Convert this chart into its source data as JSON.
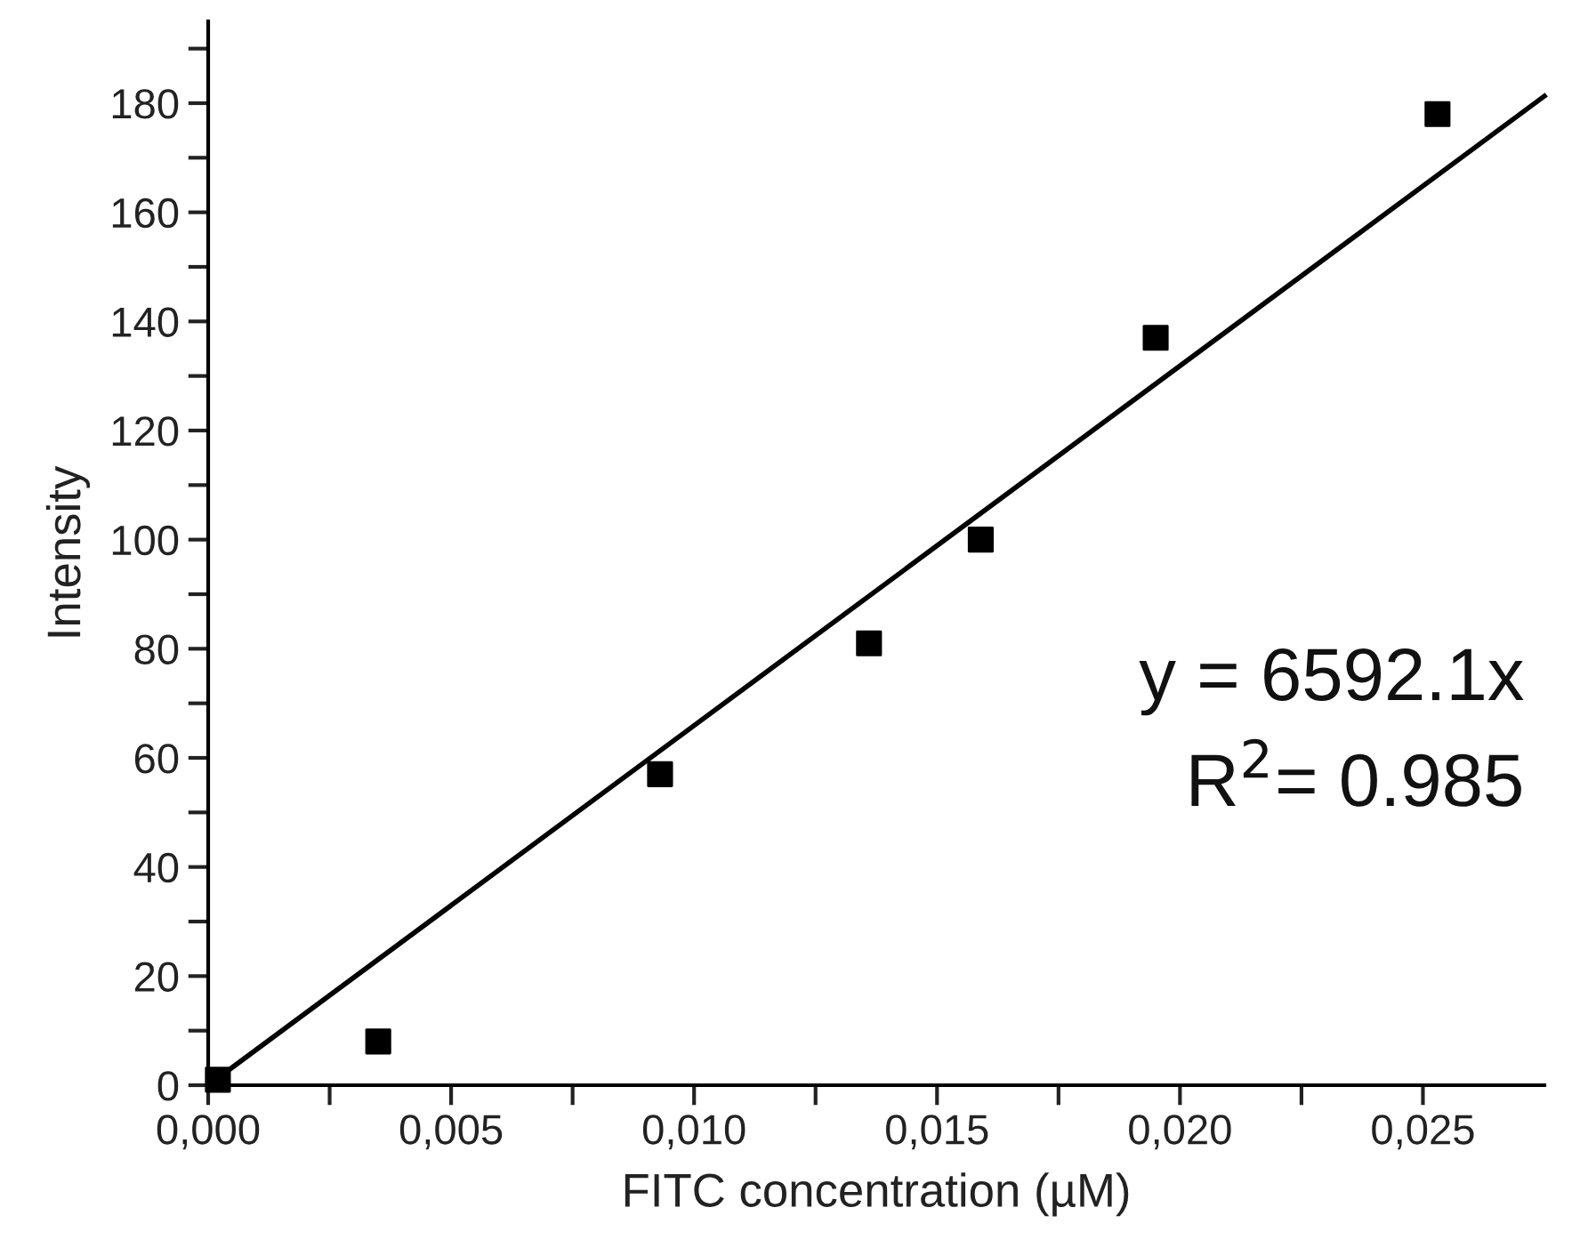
{
  "chart_data": {
    "type": "scatter",
    "xlabel": "FITC concentration (µM)",
    "ylabel": "Intensity",
    "annotations": [
      "y = 6592.1x",
      "R$^{2}$= 0.985"
    ],
    "series": [
      {
        "color": "#000000",
        "marker": "square",
        "x": [
          0.0002,
          0.0035,
          0.0093,
          0.0136,
          0.0159,
          0.0195,
          0.0253
        ],
        "values": [
          1,
          8,
          57,
          81,
          100,
          137,
          178
        ]
      },
      {
        "type": "line",
        "color": "#000000",
        "marker": "none",
        "line_style": "solid",
        "x": [
          0,
          0.0275
        ],
        "values": [
          0,
          181.3
        ]
      }
    ],
    "xlim": [
      0,
      0.0275
    ],
    "ylim": [
      0,
      195
    ],
    "xticks": [
      {
        "value": 0,
        "label": "0,000"
      },
      {
        "value": 0.0025,
        "label": null
      },
      {
        "value": 0.005,
        "label": "0,005"
      },
      {
        "value": 0.0075,
        "label": null
      },
      {
        "value": 0.01,
        "label": "0,010"
      },
      {
        "value": 0.0125,
        "label": null
      },
      {
        "value": 0.015,
        "label": "0,015"
      },
      {
        "value": 0.0175,
        "label": null
      },
      {
        "value": 0.02,
        "label": "0,020"
      },
      {
        "value": 0.0225,
        "label": null
      },
      {
        "value": 0.025,
        "label": "0,025"
      }
    ],
    "yticks": [
      0,
      {
        "value": 10,
        "label": null
      },
      20,
      {
        "value": 30,
        "label": null
      },
      40,
      {
        "value": 50,
        "label": null
      },
      60,
      {
        "value": 70,
        "label": null
      },
      80,
      {
        "value": 90,
        "label": null
      },
      100,
      {
        "value": 110,
        "label": null
      },
      120,
      {
        "value": 130,
        "label": null
      },
      140,
      {
        "value": 150,
        "label": null
      },
      160,
      {
        "value": 170,
        "label": null
      },
      180,
      {
        "value": 190,
        "label": null
      }
    ],
    "grid": false,
    "legend": false
  }
}
